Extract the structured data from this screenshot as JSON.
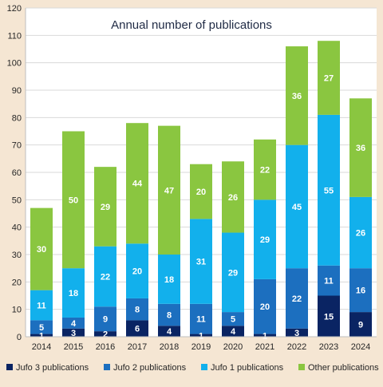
{
  "chart_data": {
    "type": "bar",
    "stacked": true,
    "title": "Annual number of publications",
    "categories": [
      "2014",
      "2015",
      "2016",
      "2017",
      "2018",
      "2019",
      "2020",
      "2021",
      "2022",
      "2023",
      "2024"
    ],
    "ylim": [
      0,
      120
    ],
    "yticks": [
      0,
      10,
      20,
      30,
      40,
      50,
      60,
      70,
      80,
      90,
      100,
      110,
      120
    ],
    "grid": true,
    "legend_position": "bottom",
    "series": [
      {
        "name": "Jufo 3 publications",
        "color": "#0a2463",
        "values": [
          1,
          3,
          2,
          6,
          4,
          1,
          4,
          1,
          3,
          15,
          9
        ]
      },
      {
        "name": "Jufo 2 publications",
        "color": "#1c6fbf",
        "values": [
          5,
          4,
          9,
          8,
          8,
          11,
          5,
          20,
          22,
          11,
          16
        ]
      },
      {
        "name": "Jufo 1 publications",
        "color": "#12b0ec",
        "values": [
          11,
          18,
          22,
          20,
          18,
          31,
          29,
          29,
          45,
          55,
          26
        ]
      },
      {
        "name": "Other publications",
        "color": "#8ac640",
        "values": [
          30,
          50,
          29,
          44,
          47,
          20,
          26,
          22,
          36,
          27,
          36
        ]
      }
    ]
  }
}
